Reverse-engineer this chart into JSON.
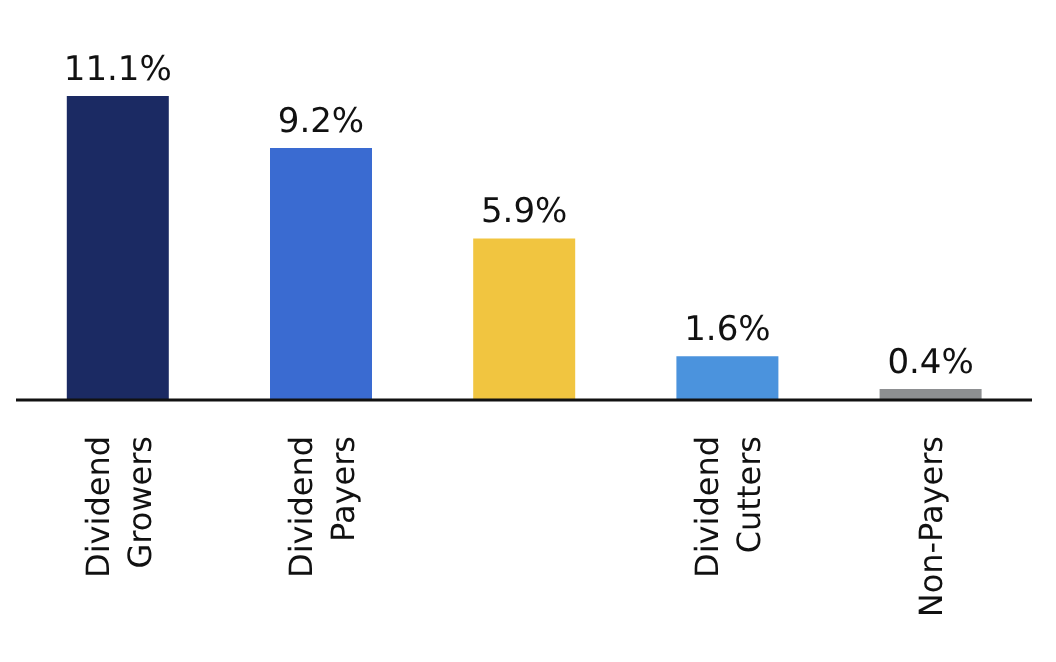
{
  "chart_data": {
    "type": "bar",
    "categories": [
      "Dividend Growers",
      "Dividend Payers",
      null,
      "Dividend Cutters",
      "Non-Payers"
    ],
    "values": [
      11.1,
      9.2,
      5.9,
      1.6,
      0.4
    ],
    "colors": [
      "#1b2a63",
      "#3a6bd1",
      "#f1c540",
      "#4b93dd",
      "#8d8f91"
    ],
    "value_labels": [
      "11.1%",
      "9.2%",
      "5.9%",
      "1.6%",
      "0.4%"
    ]
  }
}
